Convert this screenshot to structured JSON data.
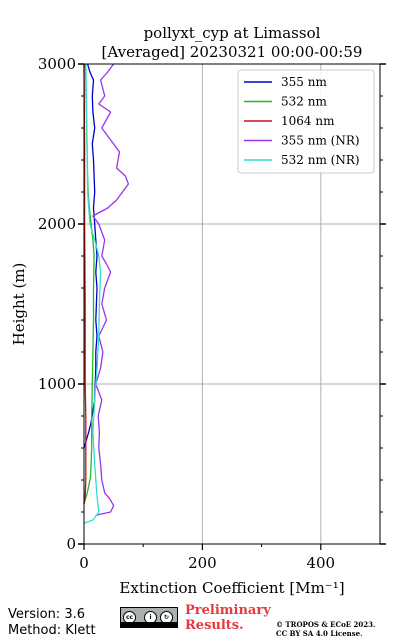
{
  "chart_data": {
    "type": "line",
    "title": "pollyxt_cyp at Limassol",
    "subtitle": "[Averaged] 20230321 00:00-00:59",
    "xlabel": "Extinction Coefficient [Mm⁻¹]",
    "ylabel": "Height (m)",
    "xlim": [
      0,
      500
    ],
    "ylim": [
      0,
      3000
    ],
    "xticks": [
      0,
      200,
      400
    ],
    "yticks": [
      0,
      1000,
      2000,
      3000
    ],
    "grid": true,
    "legend_position": "top-right",
    "series": [
      {
        "name": "355 nm",
        "color": "#0000cc",
        "points": [
          [
            0,
            600
          ],
          [
            4,
            650
          ],
          [
            8,
            700
          ],
          [
            12,
            760
          ],
          [
            15,
            830
          ],
          [
            18,
            900
          ],
          [
            19,
            1000
          ],
          [
            20,
            1100
          ],
          [
            20,
            1200
          ],
          [
            22,
            1300
          ],
          [
            20,
            1400
          ],
          [
            21,
            1500
          ],
          [
            22,
            1600
          ],
          [
            20,
            1700
          ],
          [
            22,
            1800
          ],
          [
            20,
            1900
          ],
          [
            18,
            2000
          ],
          [
            16,
            2100
          ],
          [
            18,
            2200
          ],
          [
            17,
            2300
          ],
          [
            16,
            2400
          ],
          [
            14,
            2500
          ],
          [
            18,
            2600
          ],
          [
            15,
            2700
          ],
          [
            14,
            2800
          ],
          [
            16,
            2900
          ],
          [
            10,
            2950
          ],
          [
            6,
            3000
          ]
        ]
      },
      {
        "name": "532 nm",
        "color": "#22bb22",
        "points": [
          [
            0,
            250
          ],
          [
            4,
            300
          ],
          [
            8,
            360
          ],
          [
            11,
            420
          ],
          [
            12,
            500
          ],
          [
            13,
            600
          ],
          [
            13,
            800
          ],
          [
            14,
            1000
          ],
          [
            15,
            1200
          ],
          [
            16,
            1400
          ],
          [
            16,
            1600
          ],
          [
            17,
            1800
          ],
          [
            15,
            1900
          ],
          [
            12,
            2000
          ],
          [
            9,
            2100
          ],
          [
            7,
            2200
          ],
          [
            6,
            2300
          ],
          [
            5,
            2500
          ],
          [
            4,
            2700
          ],
          [
            3,
            2900
          ],
          [
            2,
            3000
          ]
        ]
      },
      {
        "name": "1064 nm",
        "color": "#cc1111",
        "points": [
          [
            0,
            250
          ],
          [
            2,
            300
          ],
          [
            3,
            400
          ],
          [
            3,
            600
          ],
          [
            3,
            800
          ],
          [
            2,
            1000
          ],
          [
            2,
            1500
          ],
          [
            1,
            2000
          ],
          [
            1,
            2500
          ],
          [
            0,
            3000
          ]
        ]
      },
      {
        "name": "355 nm (NR)",
        "color": "#9933ee",
        "points": [
          [
            20,
            180
          ],
          [
            45,
            200
          ],
          [
            50,
            240
          ],
          [
            44,
            280
          ],
          [
            35,
            320
          ],
          [
            30,
            400
          ],
          [
            28,
            500
          ],
          [
            25,
            600
          ],
          [
            26,
            700
          ],
          [
            24,
            800
          ],
          [
            30,
            900
          ],
          [
            20,
            1000
          ],
          [
            28,
            1100
          ],
          [
            32,
            1200
          ],
          [
            25,
            1300
          ],
          [
            38,
            1400
          ],
          [
            30,
            1500
          ],
          [
            35,
            1600
          ],
          [
            45,
            1700
          ],
          [
            38,
            1750
          ],
          [
            30,
            1800
          ],
          [
            35,
            1900
          ],
          [
            25,
            2000
          ],
          [
            15,
            2050
          ],
          [
            40,
            2100
          ],
          [
            55,
            2150
          ],
          [
            75,
            2250
          ],
          [
            70,
            2300
          ],
          [
            55,
            2350
          ],
          [
            60,
            2450
          ],
          [
            40,
            2550
          ],
          [
            30,
            2600
          ],
          [
            45,
            2700
          ],
          [
            25,
            2750
          ],
          [
            35,
            2800
          ],
          [
            28,
            2900
          ],
          [
            40,
            2950
          ],
          [
            50,
            3000
          ]
        ]
      },
      {
        "name": "532 nm (NR)",
        "color": "#33ddcc",
        "points": [
          [
            0,
            130
          ],
          [
            15,
            150
          ],
          [
            25,
            200
          ],
          [
            22,
            300
          ],
          [
            20,
            400
          ],
          [
            18,
            500
          ],
          [
            15,
            700
          ],
          [
            18,
            900
          ],
          [
            22,
            1100
          ],
          [
            25,
            1300
          ],
          [
            26,
            1500
          ],
          [
            28,
            1700
          ],
          [
            25,
            1800
          ],
          [
            18,
            1900
          ],
          [
            10,
            2000
          ],
          [
            6,
            2200
          ],
          [
            5,
            2500
          ],
          [
            4,
            2800
          ],
          [
            3,
            3000
          ]
        ]
      }
    ]
  },
  "footer": {
    "version": "Version: 3.6",
    "method": "Method: Klett",
    "prelim_line1": "Preliminary",
    "prelim_line2": "Results.",
    "copyright_line1": "© TROPOS & ECoE 2023.",
    "copyright_line2": "CC BY SA 4.0 License."
  }
}
